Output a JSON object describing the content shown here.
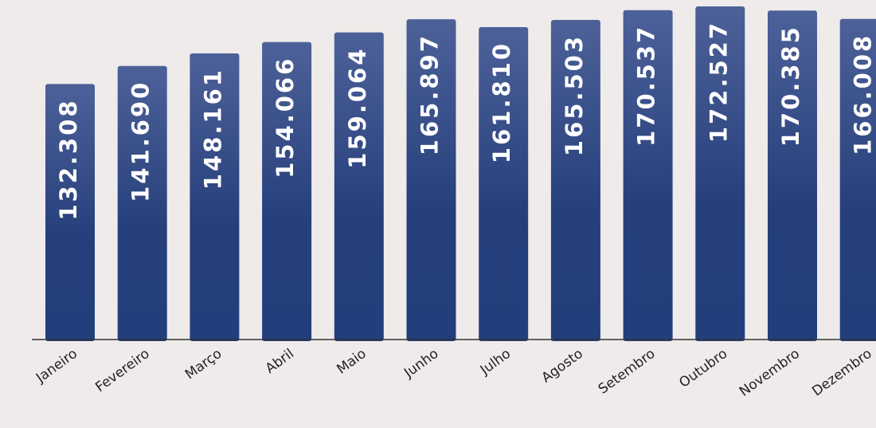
{
  "colors": {
    "background": "#efebea",
    "bar_top": "#4d6199",
    "bar_bottom": "#213f7d",
    "axis": "#333333",
    "value_text": "#ffffff",
    "category_text": "#222222"
  },
  "chart_data": {
    "type": "bar",
    "title": "",
    "xlabel": "",
    "ylabel": "",
    "categories": [
      "Janeiro",
      "Fevereiro",
      "Março",
      "Abril",
      "Maio",
      "Junho",
      "Julho",
      "Agosto",
      "Setembro",
      "Outubro",
      "Novembro",
      "Dezembro"
    ],
    "values": [
      132308,
      141690,
      148161,
      154066,
      159064,
      165897,
      161810,
      165503,
      170537,
      172527,
      170385,
      166008
    ],
    "value_labels": [
      "132.308",
      "141.690",
      "148.161",
      "154.066",
      "159.064",
      "165.897",
      "161.810",
      "165.503",
      "170.537",
      "172.527",
      "170.385",
      "166.008"
    ],
    "grid": false,
    "legend": "none",
    "value_labels_position": "inside-bar-rotated",
    "category_labels_rotation": "-45deg"
  }
}
